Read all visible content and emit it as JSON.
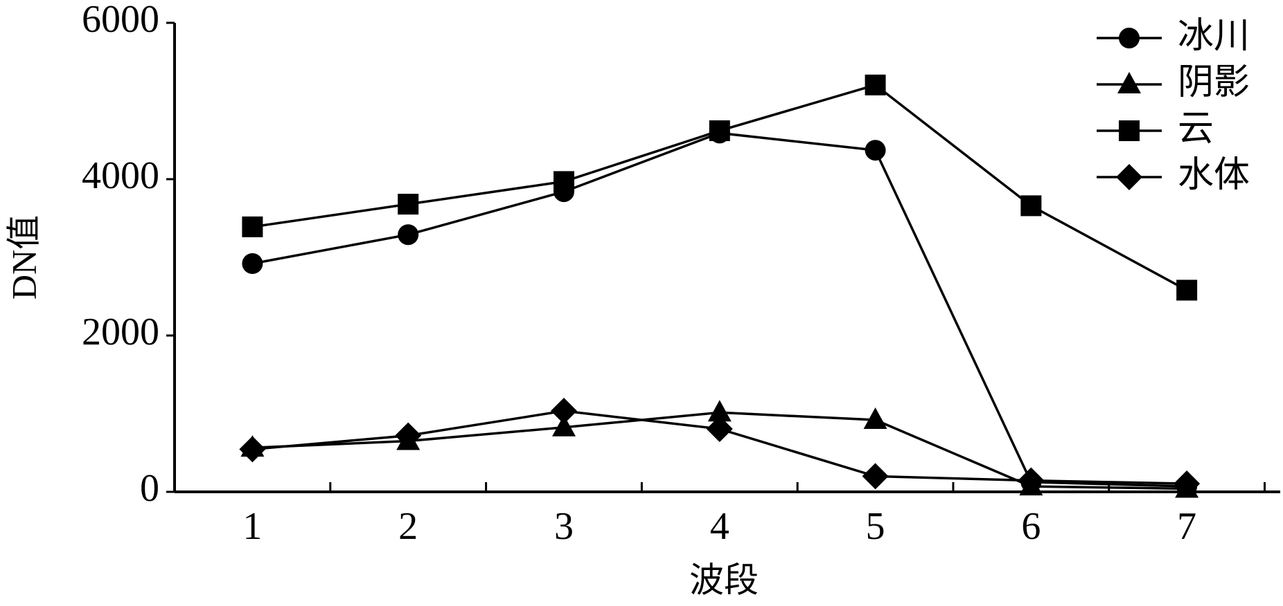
{
  "chart_data": {
    "type": "line",
    "x_label": "波段",
    "y_label": "DN值",
    "x": [
      1,
      2,
      3,
      4,
      5,
      6,
      7
    ],
    "xlim": [
      0.5,
      7.6
    ],
    "xticks": [
      1,
      2,
      3,
      4,
      5,
      6,
      7
    ],
    "x_minor_ticks": [
      1.5,
      2.5,
      3.5,
      4.5,
      5.5,
      6.5,
      7.5
    ],
    "ylim": [
      0,
      6000
    ],
    "yticks": [
      0,
      2000,
      4000,
      6000
    ],
    "legend": "top-right",
    "grid": false,
    "series": [
      {
        "name": "冰川",
        "color": "#000000",
        "marker": "circle",
        "values": [
          2920,
          3290,
          3840,
          4590,
          4370,
          125,
          70
        ]
      },
      {
        "name": "阴影",
        "color": "#000000",
        "marker": "triangle",
        "values": [
          565,
          650,
          825,
          1015,
          920,
          70,
          40
        ]
      },
      {
        "name": "云",
        "color": "#000000",
        "marker": "square",
        "values": [
          3390,
          3680,
          3970,
          4620,
          5205,
          3660,
          2580
        ]
      },
      {
        "name": "水体",
        "color": "#000000",
        "marker": "diamond",
        "values": [
          545,
          720,
          1035,
          805,
          200,
          145,
          105
        ]
      }
    ]
  }
}
